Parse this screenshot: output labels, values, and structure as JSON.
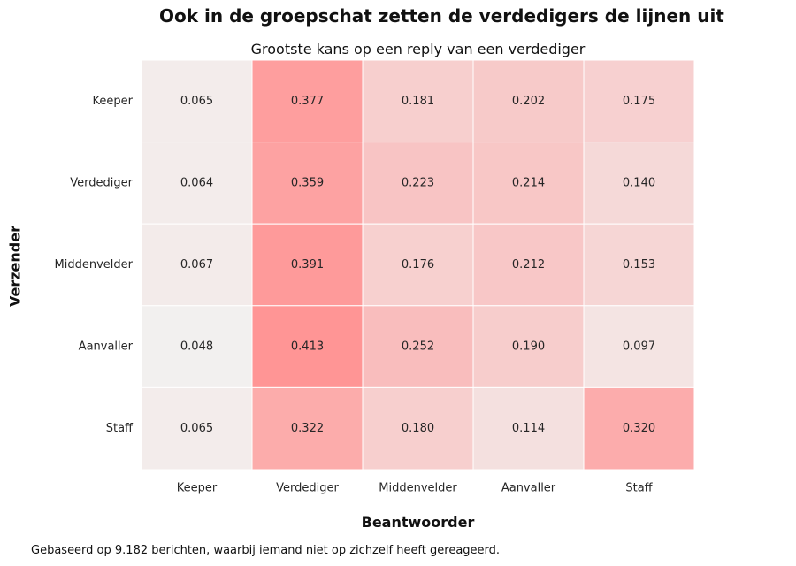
{
  "chart_data": {
    "type": "heatmap",
    "title": "Ook in de groepschat zetten de verdedigers de lijnen uit",
    "subtitle": "Grootste kans op een reply van een verdediger",
    "xlabel": "Beantwoorder",
    "ylabel": "Verzender",
    "x_categories": [
      "Keeper",
      "Verdediger",
      "Middenvelder",
      "Aanvaller",
      "Staff"
    ],
    "y_categories": [
      "Keeper",
      "Verdediger",
      "Middenvelder",
      "Aanvaller",
      "Staff"
    ],
    "values": [
      [
        0.065,
        0.377,
        0.181,
        0.202,
        0.175
      ],
      [
        0.064,
        0.359,
        0.223,
        0.214,
        0.14
      ],
      [
        0.067,
        0.391,
        0.176,
        0.212,
        0.153
      ],
      [
        0.048,
        0.413,
        0.252,
        0.19,
        0.097
      ],
      [
        0.065,
        0.322,
        0.18,
        0.114,
        0.32
      ]
    ],
    "color_low": "#F2F0EF",
    "color_high": "#FF9595",
    "footnote": "Gebaseerd op 9.182 berichten, waarbij iemand niet op zichzelf heeft gereageerd."
  }
}
